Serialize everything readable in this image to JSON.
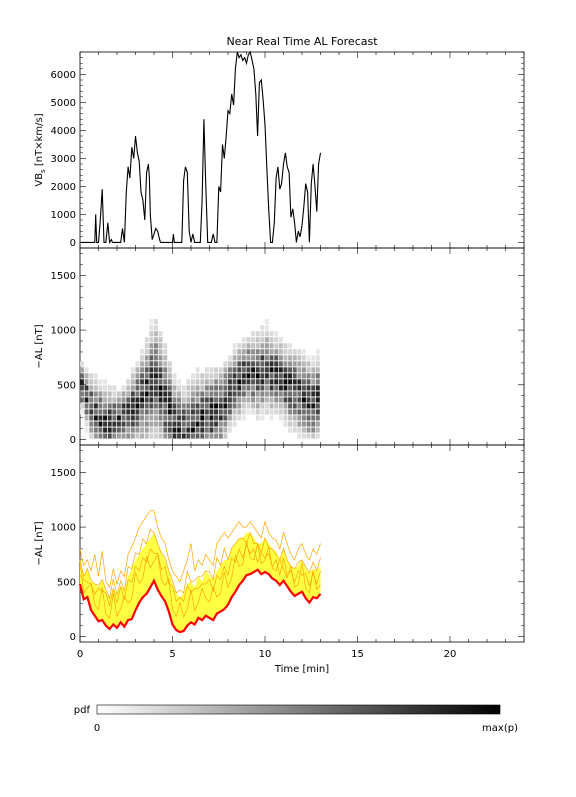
{
  "title": "Near Real Time AL Forecast",
  "chart_data": [
    {
      "type": "line",
      "ylabel_main": "VB",
      "ylabel_sub": "s",
      "ylabel_units": " [nT×km/s]",
      "xlim": [
        0,
        24
      ],
      "ylim": [
        -200,
        6800
      ],
      "yticks": [
        "0",
        "1000",
        "2000",
        "3000",
        "4000",
        "5000",
        "6000"
      ],
      "series": [
        {
          "color": "#000000",
          "x": [
            0,
            0.8,
            0.85,
            0.9,
            1.0,
            1.1,
            1.2,
            1.3,
            1.4,
            1.5,
            1.6,
            1.7,
            1.75,
            1.8,
            2.2,
            2.3,
            2.4,
            2.5,
            2.6,
            2.7,
            2.8,
            2.9,
            3.0,
            3.1,
            3.2,
            3.3,
            3.4,
            3.5,
            3.6,
            3.7,
            3.75,
            3.8,
            3.9,
            4.0,
            4.1,
            4.2,
            4.3,
            4.35,
            4.4,
            5.0,
            5.05,
            5.1,
            5.5,
            5.6,
            5.7,
            5.8,
            5.9,
            6.0,
            6.1,
            6.2,
            6.5,
            6.6,
            6.7,
            6.8,
            6.9,
            7.0,
            7.1,
            7.2,
            7.3,
            7.4,
            7.5,
            7.6,
            7.7,
            7.8,
            7.9,
            8.0,
            8.1,
            8.2,
            8.3,
            8.4,
            8.5,
            8.6,
            8.7,
            8.8,
            8.9,
            9.0,
            9.1,
            9.2,
            9.3,
            9.4,
            9.5,
            9.6,
            9.7,
            9.8,
            9.9,
            10.0,
            10.1,
            10.2,
            10.3,
            10.4,
            10.5,
            10.6,
            10.7,
            10.8,
            10.9,
            11.0,
            11.1,
            11.2,
            11.3,
            11.4,
            11.5,
            11.6,
            11.7,
            11.8,
            11.9,
            12.0,
            12.1,
            12.2,
            12.3,
            12.4,
            12.5,
            12.6,
            12.7,
            12.8,
            12.9,
            13.0
          ],
          "y": [
            0,
            0,
            1000,
            0,
            0,
            800,
            1900,
            0,
            0,
            700,
            0,
            100,
            0,
            0,
            0,
            500,
            0,
            1800,
            2700,
            2300,
            3400,
            3000,
            3800,
            3200,
            2900,
            1800,
            1500,
            800,
            2500,
            2800,
            2300,
            1000,
            100,
            300,
            500,
            400,
            100,
            0,
            0,
            0,
            300,
            0,
            0,
            2200,
            2700,
            2500,
            400,
            0,
            300,
            0,
            0,
            1500,
            4400,
            2000,
            0,
            0,
            0,
            300,
            0,
            0,
            2000,
            1800,
            3500,
            3000,
            3800,
            4700,
            4600,
            5300,
            4900,
            6200,
            6800,
            6600,
            6700,
            6500,
            6600,
            6400,
            6700,
            6800,
            6500,
            6200,
            5300,
            3800,
            5700,
            5800,
            5100,
            4200,
            2600,
            1200,
            0,
            0,
            700,
            2300,
            2700,
            1900,
            2100,
            2800,
            3200,
            2700,
            2500,
            900,
            1200,
            700,
            0,
            400,
            200,
            600,
            1300,
            2100,
            1800,
            0,
            2100,
            2800,
            2000,
            1100,
            2800,
            3200
          ]
        }
      ]
    },
    {
      "type": "heatmap",
      "ylabel": "−AL [nT]",
      "xlim": [
        0,
        24
      ],
      "ylim": [
        -50,
        1750
      ],
      "yticks": [
        "0",
        "500",
        "1000",
        "1500"
      ],
      "cell_dx": 0.25,
      "cell_dy": 55,
      "median_x": [
        0,
        0.5,
        1.0,
        1.5,
        2.0,
        2.5,
        3.0,
        3.5,
        4.0,
        4.5,
        5.0,
        5.5,
        6.0,
        6.5,
        7.0,
        7.5,
        8.0,
        8.5,
        9.0,
        9.5,
        10.0,
        10.5,
        11.0,
        11.5,
        12.0,
        12.5,
        13.0
      ],
      "median_y": [
        450,
        250,
        150,
        100,
        150,
        200,
        300,
        400,
        520,
        320,
        100,
        50,
        80,
        150,
        200,
        250,
        400,
        500,
        580,
        560,
        600,
        550,
        480,
        420,
        350,
        300,
        380
      ],
      "max_y": [
        700,
        600,
        550,
        500,
        450,
        550,
        750,
        950,
        1150,
        900,
        600,
        500,
        600,
        650,
        700,
        700,
        800,
        900,
        950,
        1000,
        1050,
        950,
        900,
        850,
        800,
        750,
        800
      ]
    },
    {
      "type": "area",
      "ylabel": "−AL [nT]",
      "xlabel": "Time [min]",
      "xlim": [
        0,
        24
      ],
      "ylim": [
        -50,
        1750
      ],
      "xticks": [
        "0",
        "5",
        "10",
        "15",
        "20"
      ],
      "yticks": [
        "0",
        "500",
        "1000",
        "1500"
      ],
      "band_color": "#ffff44",
      "envelope_color": "#ffa500",
      "line_color": "#ff0000",
      "x": [
        0,
        0.2,
        0.4,
        0.6,
        0.8,
        1.0,
        1.2,
        1.4,
        1.6,
        1.8,
        2.0,
        2.2,
        2.4,
        2.6,
        2.8,
        3.0,
        3.2,
        3.4,
        3.6,
        3.8,
        4.0,
        4.2,
        4.4,
        4.6,
        4.8,
        5.0,
        5.2,
        5.4,
        5.6,
        5.8,
        6.0,
        6.2,
        6.4,
        6.6,
        6.8,
        7.0,
        7.2,
        7.4,
        7.6,
        7.8,
        8.0,
        8.2,
        8.4,
        8.6,
        8.8,
        9.0,
        9.2,
        9.4,
        9.6,
        9.8,
        10.0,
        10.2,
        10.4,
        10.6,
        10.8,
        11.0,
        11.2,
        11.4,
        11.6,
        11.8,
        12.0,
        12.2,
        12.4,
        12.6,
        12.8,
        13.0
      ],
      "lower": [
        470,
        330,
        350,
        230,
        180,
        130,
        140,
        90,
        60,
        100,
        70,
        120,
        80,
        140,
        150,
        230,
        300,
        350,
        380,
        440,
        500,
        420,
        360,
        310,
        220,
        100,
        50,
        30,
        40,
        90,
        120,
        100,
        160,
        140,
        180,
        160,
        140,
        200,
        220,
        240,
        280,
        350,
        400,
        460,
        500,
        550,
        560,
        580,
        600,
        560,
        580,
        560,
        520,
        500,
        460,
        500,
        450,
        400,
        360,
        380,
        400,
        340,
        300,
        350,
        340,
        380
      ],
      "upper": [
        700,
        550,
        620,
        500,
        480,
        450,
        520,
        400,
        350,
        450,
        380,
        470,
        420,
        550,
        620,
        700,
        750,
        800,
        850,
        900,
        950,
        850,
        760,
        700,
        600,
        480,
        400,
        350,
        400,
        480,
        500,
        450,
        550,
        500,
        600,
        550,
        520,
        600,
        650,
        700,
        700,
        800,
        850,
        900,
        900,
        950,
        950,
        900,
        850,
        850,
        900,
        850,
        800,
        780,
        700,
        800,
        700,
        650,
        620,
        650,
        700,
        620,
        580,
        620,
        600,
        650
      ],
      "peaks": [
        800,
        650,
        700,
        600,
        750,
        550,
        780,
        500,
        450,
        620,
        480,
        600,
        550,
        750,
        820,
        900,
        1000,
        1050,
        1100,
        1150,
        1150,
        1000,
        900,
        850,
        700,
        600,
        550,
        500,
        600,
        700,
        850,
        600,
        700,
        650,
        750,
        700,
        650,
        850,
        900,
        950,
        900,
        950,
        1000,
        1050,
        1000,
        1000,
        1050,
        1000,
        950,
        900,
        1050,
        950,
        900,
        880,
        800,
        950,
        850,
        750,
        700,
        800,
        850,
        750,
        700,
        800,
        750,
        850
      ],
      "median": [
        480,
        340,
        360,
        240,
        190,
        140,
        150,
        100,
        70,
        110,
        80,
        130,
        90,
        150,
        160,
        240,
        310,
        360,
        390,
        450,
        510,
        430,
        370,
        320,
        230,
        110,
        60,
        40,
        50,
        100,
        130,
        110,
        170,
        150,
        190,
        170,
        150,
        210,
        230,
        250,
        290,
        360,
        410,
        470,
        510,
        560,
        570,
        590,
        610,
        570,
        590,
        570,
        530,
        510,
        470,
        510,
        460,
        410,
        370,
        390,
        410,
        350,
        310,
        360,
        350,
        390
      ]
    }
  ],
  "colorbar": {
    "label": "pdf",
    "min_label": "0",
    "max_label": "max(p)"
  }
}
